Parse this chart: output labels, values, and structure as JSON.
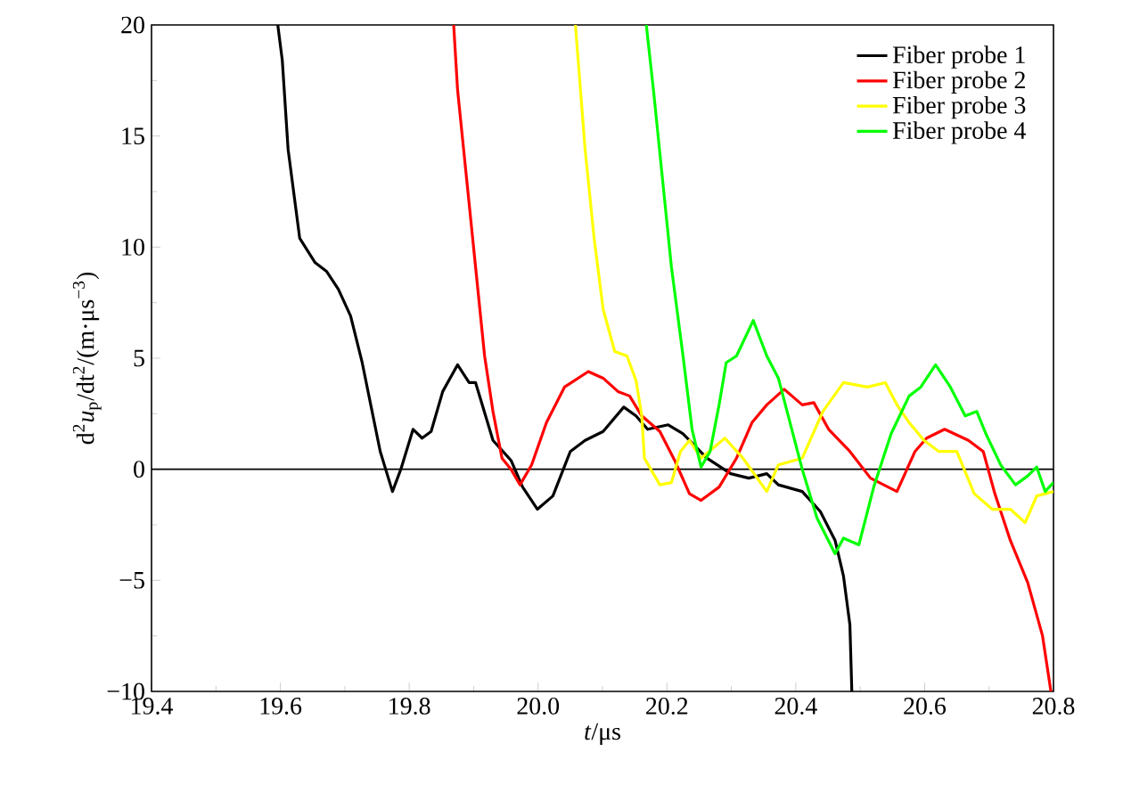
{
  "chart_data": {
    "type": "line",
    "xlabel": "*t*/μs",
    "ylabel": "d$^{2}$*u*$_{p}$/dt$^{2}$/(m·μs$^{−3}$)",
    "xlim": [
      19.4,
      20.8
    ],
    "ylim": [
      -10,
      20
    ],
    "xticks": [
      19.4,
      19.6,
      19.8,
      {
        "value": 20,
        "label": "20.0"
      },
      20.2,
      20.4,
      20.6,
      20.8
    ],
    "yticks": [
      {
        "value": -10,
        "label": "−10"
      },
      {
        "value": -5,
        "label": "−5"
      },
      0,
      5,
      10,
      15,
      20
    ],
    "legend": "top right",
    "line_style": "solid",
    "ref_lines": [
      {
        "axis": "y",
        "value": 0,
        "color": "#000000"
      }
    ],
    "series": [
      {
        "name": "Fiber probe 1",
        "color": "#000000",
        "x": [
          19.596,
          19.603,
          19.612,
          19.63,
          19.654,
          19.672,
          19.69,
          19.709,
          19.727,
          19.741,
          19.755,
          19.774,
          19.787,
          19.806,
          19.82,
          19.834,
          19.852,
          19.875,
          19.893,
          19.903,
          19.93,
          19.958,
          19.976,
          19.999,
          20.023,
          20.05,
          20.073,
          20.101,
          20.133,
          20.152,
          20.17,
          20.202,
          20.225,
          20.262,
          20.299,
          20.327,
          20.355,
          20.373,
          20.41,
          20.438,
          20.461,
          20.474,
          20.484,
          20.487
        ],
        "values": [
          20,
          18.4,
          14.4,
          10.4,
          9.3,
          8.9,
          8.1,
          6.9,
          4.8,
          2.8,
          0.8,
          -1.0,
          0,
          1.8,
          1.4,
          1.7,
          3.5,
          4.7,
          3.9,
          3.9,
          1.3,
          0.4,
          -0.8,
          -1.8,
          -1.2,
          0.8,
          1.3,
          1.7,
          2.8,
          2.4,
          1.8,
          2.0,
          1.6,
          0.5,
          -0.2,
          -0.4,
          -0.2,
          -0.7,
          -1.0,
          -1.9,
          -3.2,
          -4.8,
          -7.0,
          -10
        ]
      },
      {
        "name": "Fiber probe 2",
        "color": "#ff0000",
        "x": [
          19.869,
          19.875,
          19.889,
          19.903,
          19.917,
          19.93,
          19.944,
          19.958,
          19.972,
          19.99,
          20.013,
          20.041,
          20.078,
          20.101,
          20.124,
          20.142,
          20.161,
          20.189,
          20.212,
          20.235,
          20.253,
          20.281,
          20.308,
          20.332,
          20.355,
          20.382,
          20.41,
          20.428,
          20.451,
          20.484,
          20.516,
          20.557,
          20.585,
          20.603,
          20.631,
          20.668,
          20.691,
          20.709,
          20.733,
          20.76,
          20.783,
          20.796
        ],
        "values": [
          20,
          17.1,
          13.1,
          9.1,
          5.1,
          2.6,
          0.5,
          0,
          -0.7,
          0.2,
          2.1,
          3.7,
          4.4,
          4.1,
          3.5,
          3.3,
          2.4,
          1.7,
          0.4,
          -1.1,
          -1.4,
          -0.8,
          0.5,
          2.1,
          2.9,
          3.6,
          2.9,
          3.0,
          1.8,
          0.8,
          -0.4,
          -1.0,
          0.8,
          1.4,
          1.8,
          1.3,
          0.8,
          -1.1,
          -3.2,
          -5.1,
          -7.5,
          -10
        ]
      },
      {
        "name": "Fiber probe 3",
        "color": "#ffff00",
        "x": [
          20.058,
          20.073,
          20.087,
          20.101,
          20.119,
          20.138,
          20.152,
          20.161,
          20.165,
          20.189,
          20.207,
          20.221,
          20.235,
          20.253,
          20.29,
          20.318,
          20.355,
          20.373,
          20.41,
          20.442,
          20.474,
          20.511,
          20.539,
          20.557,
          20.576,
          20.599,
          20.622,
          20.65,
          20.677,
          20.705,
          20.733,
          20.756,
          20.774,
          20.8
        ],
        "values": [
          20,
          14.4,
          10.4,
          7.2,
          5.3,
          5.1,
          4.0,
          2.4,
          0.5,
          -0.7,
          -0.6,
          0.8,
          1.3,
          0.5,
          1.4,
          0.5,
          -1.0,
          0.2,
          0.5,
          2.6,
          3.9,
          3.7,
          3.9,
          2.9,
          2.1,
          1.3,
          0.8,
          0.8,
          -1.1,
          -1.8,
          -1.8,
          -2.4,
          -1.2,
          -1.0
        ]
      },
      {
        "name": "Fiber probe 4",
        "color": "#00ff00",
        "x": [
          20.168,
          20.179,
          20.193,
          20.207,
          20.225,
          20.239,
          20.253,
          20.267,
          20.281,
          20.292,
          20.308,
          20.334,
          20.355,
          20.373,
          20.41,
          20.433,
          20.461,
          20.474,
          20.498,
          20.521,
          20.548,
          20.576,
          20.594,
          20.617,
          20.64,
          20.663,
          20.681,
          20.695,
          20.718,
          20.741,
          20.76,
          20.774,
          20.787,
          20.8
        ],
        "values": [
          20,
          17.1,
          13.1,
          9.1,
          5.1,
          1.8,
          0.1,
          0.8,
          2.9,
          4.8,
          5.1,
          6.7,
          5.1,
          4.1,
          0,
          -2.2,
          -3.8,
          -3.1,
          -3.4,
          -0.8,
          1.6,
          3.3,
          3.7,
          4.7,
          3.7,
          2.4,
          2.6,
          1.6,
          0.2,
          -0.7,
          -0.3,
          0.1,
          -1.0,
          -0.6
        ]
      }
    ]
  }
}
